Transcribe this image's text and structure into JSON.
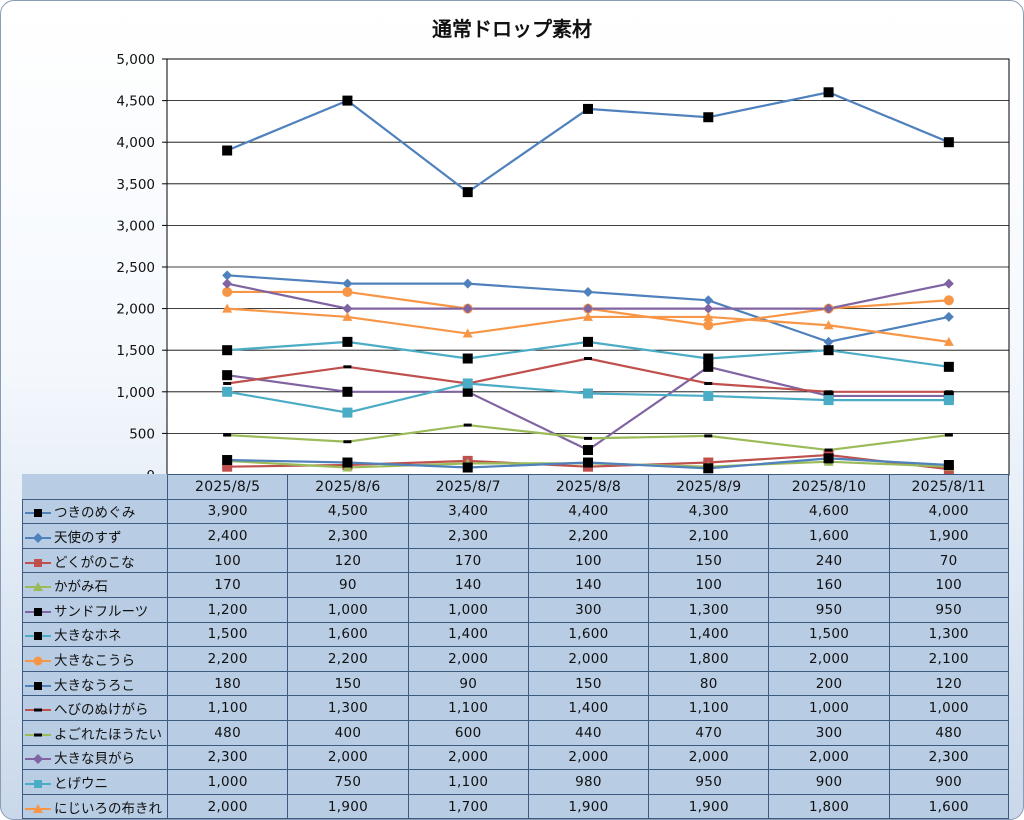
{
  "chart_data": {
    "type": "line",
    "title": "通常ドロップ素材",
    "categories": [
      "2025/8/5",
      "2025/8/6",
      "2025/8/7",
      "2025/8/8",
      "2025/8/9",
      "2025/8/10",
      "2025/8/11"
    ],
    "ylim": [
      0,
      5000
    ],
    "yticks": [
      "0",
      "500",
      "1,000",
      "1,500",
      "2,000",
      "2,500",
      "3,000",
      "3,500",
      "4,000",
      "4,500",
      "5,000"
    ],
    "grid": true,
    "legend": "data-table",
    "series": [
      {
        "name": "つきのめぐみ",
        "color": "#4f81bd",
        "marker": "square-black",
        "values": [
          3900,
          4500,
          3400,
          4400,
          4300,
          4600,
          4000
        ],
        "labels": [
          "3,900",
          "4,500",
          "3,400",
          "4,400",
          "4,300",
          "4,600",
          "4,000"
        ]
      },
      {
        "name": "天使のすず",
        "color": "#4f81bd",
        "marker": "diamond",
        "values": [
          2400,
          2300,
          2300,
          2200,
          2100,
          1600,
          1900
        ],
        "labels": [
          "2,400",
          "2,300",
          "2,300",
          "2,200",
          "2,100",
          "1,600",
          "1,900"
        ]
      },
      {
        "name": "どくがのこな",
        "color": "#c0504d",
        "marker": "square",
        "values": [
          100,
          120,
          170,
          100,
          150,
          240,
          70
        ],
        "labels": [
          "100",
          "120",
          "170",
          "100",
          "150",
          "240",
          "70"
        ]
      },
      {
        "name": "かがみ石",
        "color": "#9bbb59",
        "marker": "triangle",
        "values": [
          170,
          90,
          140,
          140,
          100,
          160,
          100
        ],
        "labels": [
          "170",
          "90",
          "140",
          "140",
          "100",
          "160",
          "100"
        ]
      },
      {
        "name": "サンドフルーツ",
        "color": "#8064a2",
        "marker": "square-black",
        "values": [
          1200,
          1000,
          1000,
          300,
          1300,
          950,
          950
        ],
        "labels": [
          "1,200",
          "1,000",
          "1,000",
          "300",
          "1,300",
          "950",
          "950"
        ]
      },
      {
        "name": "大きなホネ",
        "color": "#4bacc6",
        "marker": "square-black",
        "values": [
          1500,
          1600,
          1400,
          1600,
          1400,
          1500,
          1300
        ],
        "labels": [
          "1,500",
          "1,600",
          "1,400",
          "1,600",
          "1,400",
          "1,500",
          "1,300"
        ]
      },
      {
        "name": "大きなこうら",
        "color": "#f79646",
        "marker": "circle",
        "values": [
          2200,
          2200,
          2000,
          2000,
          1800,
          2000,
          2100
        ],
        "labels": [
          "2,200",
          "2,200",
          "2,000",
          "2,000",
          "1,800",
          "2,000",
          "2,100"
        ]
      },
      {
        "name": "大きなうろこ",
        "color": "#4f81bd",
        "marker": "square-black",
        "values": [
          180,
          150,
          90,
          150,
          80,
          200,
          120
        ],
        "labels": [
          "180",
          "150",
          "90",
          "150",
          "80",
          "200",
          "120"
        ]
      },
      {
        "name": "へびのぬけがら",
        "color": "#c0504d",
        "marker": "dash-black",
        "values": [
          1100,
          1300,
          1100,
          1400,
          1100,
          1000,
          1000
        ],
        "labels": [
          "1,100",
          "1,300",
          "1,100",
          "1,400",
          "1,100",
          "1,000",
          "1,000"
        ]
      },
      {
        "name": "よごれたほうたい",
        "color": "#9bbb59",
        "marker": "dash-black",
        "values": [
          480,
          400,
          600,
          440,
          470,
          300,
          480
        ],
        "labels": [
          "480",
          "400",
          "600",
          "440",
          "470",
          "300",
          "480"
        ]
      },
      {
        "name": "大きな貝がら",
        "color": "#8064a2",
        "marker": "diamond",
        "values": [
          2300,
          2000,
          2000,
          2000,
          2000,
          2000,
          2300
        ],
        "labels": [
          "2,300",
          "2,000",
          "2,000",
          "2,000",
          "2,000",
          "2,000",
          "2,300"
        ]
      },
      {
        "name": "とげウニ",
        "color": "#4bacc6",
        "marker": "square",
        "values": [
          1000,
          750,
          1100,
          980,
          950,
          900,
          900
        ],
        "labels": [
          "1,000",
          "750",
          "1,100",
          "980",
          "950",
          "900",
          "900"
        ]
      },
      {
        "name": "にじいろの布きれ",
        "color": "#f79646",
        "marker": "triangle",
        "values": [
          2000,
          1900,
          1700,
          1900,
          1900,
          1800,
          1600
        ],
        "labels": [
          "2,000",
          "1,900",
          "1,700",
          "1,900",
          "1,900",
          "1,800",
          "1,600"
        ]
      }
    ]
  }
}
